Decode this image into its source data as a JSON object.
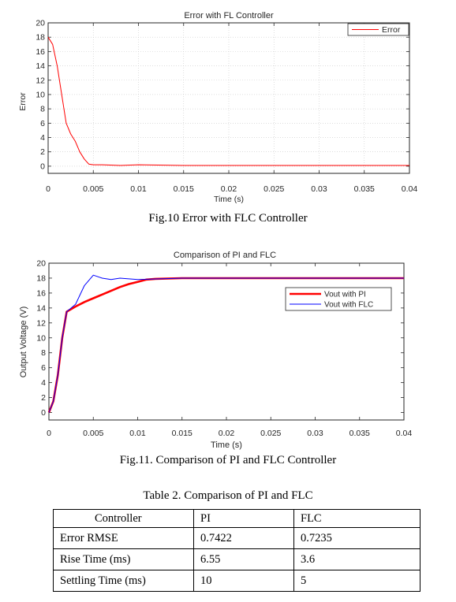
{
  "figure1": {
    "caption": "Fig.10 Error with FLC Controller"
  },
  "figure2": {
    "caption": "Fig.11. Comparison of PI and FLC Controller"
  },
  "table": {
    "caption": "Table 2. Comparison of PI and FLC",
    "headers": [
      "Controller",
      "PI",
      "FLC"
    ],
    "rows": [
      [
        "Error RMSE",
        "0.7422",
        "0.7235"
      ],
      [
        "Rise Time (ms)",
        "6.55",
        "3.6"
      ],
      [
        "Settling Time (ms)",
        "10",
        "5"
      ]
    ]
  },
  "chart_data": [
    {
      "type": "line",
      "title": "Error with FL Controller",
      "xlabel": "Time (s)",
      "ylabel": "Error",
      "xlim": [
        0,
        0.04
      ],
      "ylim": [
        -1,
        20
      ],
      "xticks": [
        "0",
        "0.005",
        "0.01",
        "0.015",
        "0.02",
        "0.025",
        "0.03",
        "0.035",
        "0.04"
      ],
      "yticks": [
        "0",
        "2",
        "4",
        "6",
        "8",
        "10",
        "12",
        "14",
        "16",
        "18",
        "20"
      ],
      "grid": true,
      "legend_position": "top-right",
      "series": [
        {
          "name": "Error",
          "color": "#ff0000",
          "x": [
            0,
            0.0005,
            0.001,
            0.0015,
            0.002,
            0.0025,
            0.003,
            0.0035,
            0.004,
            0.0045,
            0.005,
            0.006,
            0.008,
            0.01,
            0.015,
            0.02,
            0.025,
            0.03,
            0.035,
            0.04
          ],
          "y": [
            18,
            17,
            14,
            10,
            6,
            4.5,
            3.5,
            2,
            1,
            0.3,
            0.2,
            0.2,
            0.1,
            0.2,
            0.1,
            0.1,
            0.1,
            0.1,
            0.1,
            0.1
          ]
        }
      ]
    },
    {
      "type": "line",
      "title": "Comparison of PI and FLC",
      "xlabel": "Time (s)",
      "ylabel": "Output Voltage (V)",
      "xlim": [
        0,
        0.04
      ],
      "ylim": [
        -1,
        20
      ],
      "xticks": [
        "0",
        "0.005",
        "0.01",
        "0.015",
        "0.02",
        "0.025",
        "0.03",
        "0.035",
        "0.04"
      ],
      "yticks": [
        "0",
        "2",
        "4",
        "6",
        "8",
        "10",
        "12",
        "14",
        "16",
        "18",
        "20"
      ],
      "grid": false,
      "legend_position": "top-right",
      "series": [
        {
          "name": "Vout with PI",
          "color": "#ff0000",
          "x": [
            0,
            0.0005,
            0.001,
            0.0015,
            0.002,
            0.003,
            0.004,
            0.005,
            0.006,
            0.007,
            0.008,
            0.009,
            0.01,
            0.011,
            0.012,
            0.015,
            0.02,
            0.025,
            0.03,
            0.035,
            0.04
          ],
          "y": [
            0,
            1.5,
            5,
            10,
            13.5,
            14.2,
            14.8,
            15.3,
            15.8,
            16.3,
            16.8,
            17.2,
            17.5,
            17.8,
            17.9,
            18,
            18,
            18,
            18,
            18,
            18
          ]
        },
        {
          "name": "Vout with FLC",
          "color": "#0000ff",
          "x": [
            0,
            0.0005,
            0.001,
            0.0015,
            0.002,
            0.003,
            0.004,
            0.005,
            0.006,
            0.007,
            0.008,
            0.01,
            0.015,
            0.02,
            0.025,
            0.03,
            0.035,
            0.04
          ],
          "y": [
            0,
            1.5,
            5,
            10,
            13.5,
            14.5,
            17,
            18.4,
            18,
            17.8,
            18,
            17.8,
            18,
            18,
            18,
            18,
            18,
            18
          ]
        }
      ]
    }
  ]
}
